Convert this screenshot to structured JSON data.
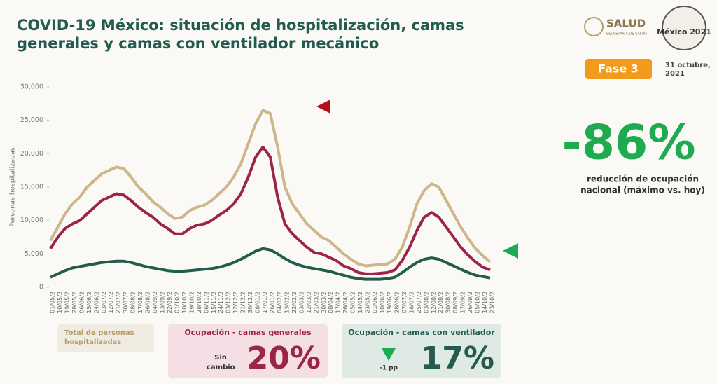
{
  "header": {
    "title_lines": [
      "COVID-19 México: situación de hospitalización, camas",
      "generales y camas con ventilador mecánico"
    ],
    "logo_text": "SALUD",
    "logo_subtext": "SECRETARÍA DE SALUD",
    "emblem_text": "México 2021",
    "phase": "Fase 3",
    "date_lines": [
      "31 octubre,",
      "2021"
    ]
  },
  "kpi": {
    "value": "-86%",
    "caption_lines": [
      "reducción de ocupación",
      "nacional (máximo vs. hoy)"
    ]
  },
  "boxes": {
    "general": {
      "status_lines": [
        "Sin",
        "cambio"
      ],
      "value": "20%"
    },
    "ventilator": {
      "change": "-1 pp",
      "value": "17%"
    }
  },
  "chart_data": {
    "type": "line",
    "y_label": "Personas hospitalizadas",
    "categories": [
      "01/05/2",
      "10/05/2",
      "19/05/2",
      "28/05/2",
      "06/06/2",
      "15/06/2",
      "24/06/2",
      "03/07/2",
      "12/07/2",
      "21/07/2",
      "30/07/2",
      "08/08/2",
      "17/08/2",
      "26/08/2",
      "04/09/2",
      "13/09/2",
      "22/09/2",
      "01/10/2",
      "10/10/2",
      "19/10/2",
      "28/10/2",
      "06/11/2",
      "15/11/2",
      "24/11/2",
      "03/12/2",
      "12/12/2",
      "21/12/2",
      "30/12/2",
      "08/01/2",
      "17/01/2",
      "26/01/2",
      "04/02/2",
      "13/02/2",
      "22/02/2",
      "03/03/2",
      "12/03/2",
      "21/03/2",
      "30/03/2",
      "08/04/2",
      "17/04/2",
      "26/04/2",
      "05/05/2",
      "14/05/2",
      "23/05/2",
      "01/06/2",
      "10/06/2",
      "19/06/2",
      "28/06/2",
      "07/07/2",
      "16/07/2",
      "25/07/2",
      "03/08/2",
      "12/08/2",
      "21/08/2",
      "30/08/2",
      "08/09/2",
      "17/09/2",
      "26/09/2",
      "05/10/2",
      "14/10/2",
      "23/10/2"
    ],
    "series": [
      {
        "name": "Total de personas hospitalizadas",
        "color": "#cdb689",
        "values": [
          7000,
          9000,
          11000,
          12500,
          13500,
          15000,
          16000,
          17000,
          17500,
          18000,
          17800,
          16500,
          15000,
          14000,
          12800,
          12000,
          11000,
          10300,
          10500,
          11500,
          12000,
          12300,
          13000,
          14000,
          15000,
          16500,
          18500,
          21500,
          24500,
          26500,
          26000,
          21000,
          15000,
          12500,
          11000,
          9500,
          8500,
          7500,
          7000,
          6000,
          5000,
          4200,
          3500,
          3200,
          3300,
          3400,
          3500,
          4200,
          6000,
          9000,
          12500,
          14500,
          15500,
          15000,
          13000,
          11000,
          9000,
          7300,
          5800,
          4700,
          3800
        ]
      },
      {
        "name": "Ocupación - camas generales",
        "color": "#9d2449",
        "values": [
          5800,
          7500,
          8800,
          9500,
          10000,
          11000,
          12000,
          13000,
          13500,
          14000,
          13800,
          13000,
          12000,
          11200,
          10500,
          9500,
          8800,
          8000,
          8000,
          8800,
          9300,
          9500,
          10000,
          10800,
          11500,
          12500,
          14000,
          16500,
          19500,
          21000,
          19500,
          13500,
          9500,
          8000,
          7000,
          6000,
          5200,
          5000,
          4500,
          4000,
          3200,
          2800,
          2200,
          2000,
          2000,
          2100,
          2200,
          2600,
          4000,
          6000,
          8500,
          10500,
          11200,
          10500,
          9000,
          7500,
          6000,
          4800,
          3800,
          3000,
          2600
        ]
      },
      {
        "name": "Ocupación - camas con ventilador",
        "color": "#235b4e",
        "values": [
          1500,
          2000,
          2500,
          2900,
          3100,
          3300,
          3500,
          3700,
          3800,
          3900,
          3900,
          3700,
          3400,
          3100,
          2900,
          2700,
          2500,
          2400,
          2400,
          2500,
          2600,
          2700,
          2800,
          3000,
          3300,
          3700,
          4200,
          4800,
          5400,
          5800,
          5600,
          5000,
          4300,
          3700,
          3300,
          3000,
          2800,
          2600,
          2400,
          2100,
          1800,
          1500,
          1300,
          1200,
          1200,
          1200,
          1300,
          1500,
          2200,
          3000,
          3700,
          4200,
          4400,
          4200,
          3700,
          3200,
          2700,
          2200,
          1800,
          1600,
          1400
        ]
      }
    ],
    "ylim": [
      0,
      30000
    ],
    "yticks": [
      0,
      {
        "value": 5000,
        "label": "5,000"
      },
      {
        "value": 10000,
        "label": "10,000"
      },
      {
        "value": 15000,
        "label": "15,000"
      },
      {
        "value": 20000,
        "label": "20,000"
      },
      {
        "value": 25000,
        "label": "25,000"
      },
      {
        "value": 30000,
        "label": "30,000"
      }
    ],
    "grid": false
  }
}
